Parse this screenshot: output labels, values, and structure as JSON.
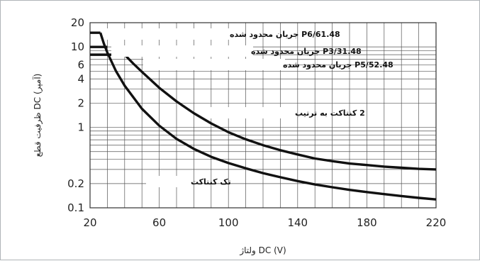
{
  "chart_data": {
    "type": "line",
    "xlabel": "ولتاژ DC (V)",
    "ylabel": "ظرفیت قطع DC (آمپر)",
    "x_scale": "linear",
    "y_scale": "log",
    "xlim": [
      20,
      220
    ],
    "ylim": [
      0.1,
      20
    ],
    "x_ticks": [
      "20",
      "60",
      "100",
      "140",
      "180",
      "220"
    ],
    "y_ticks": [
      "0.1",
      "0.2",
      "1",
      "2",
      "4",
      "6",
      "10",
      "20"
    ],
    "grid": true,
    "series": [
      {
        "name": "2 کنتاکت به ترتیب",
        "x": [
          40,
          45,
          50,
          55,
          60,
          70,
          80,
          90,
          100,
          110,
          120,
          130,
          140,
          150,
          160,
          170,
          180,
          190,
          200,
          210,
          220
        ],
        "y": [
          8,
          6.2,
          4.9,
          3.9,
          3.1,
          2.1,
          1.5,
          1.12,
          0.87,
          0.71,
          0.6,
          0.52,
          0.46,
          0.41,
          0.38,
          0.355,
          0.34,
          0.325,
          0.315,
          0.305,
          0.3
        ]
      },
      {
        "name": "تک کنتاکت",
        "x": [
          26,
          28,
          30,
          35,
          40,
          50,
          60,
          70,
          80,
          90,
          100,
          110,
          120,
          130,
          140,
          150,
          160,
          170,
          180,
          190,
          200,
          210,
          220
        ],
        "y": [
          15,
          11,
          8.5,
          5,
          3.3,
          1.7,
          1.05,
          0.72,
          0.54,
          0.43,
          0.36,
          0.31,
          0.27,
          0.24,
          0.215,
          0.195,
          0.18,
          0.167,
          0.157,
          0.148,
          0.14,
          0.133,
          0.127
        ]
      }
    ],
    "limits": [
      {
        "label": "48.P6/61 جریان محدود شده",
        "y": 15,
        "x": [
          20,
          26
        ]
      },
      {
        "label": "48.P3/31 جریان محدود شده",
        "y": 10,
        "x": [
          20,
          30
        ]
      },
      {
        "label": "48.P5/52 جریان محدود شده",
        "y": 8,
        "x": [
          20,
          40
        ]
      }
    ]
  }
}
